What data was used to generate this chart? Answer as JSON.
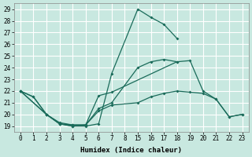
{
  "xlabel": "Humidex (Indice chaleur)",
  "bg_color": "#c8e8e0",
  "grid_color": "#ffffff",
  "line_color": "#1a6b5a",
  "ylim": [
    18.5,
    29.5
  ],
  "yticks": [
    19,
    20,
    21,
    22,
    23,
    24,
    25,
    26,
    27,
    28,
    29
  ],
  "xtick_labels": [
    "0",
    "1",
    "2",
    "3",
    "4",
    "5",
    "6",
    "7",
    "8",
    "15",
    "16",
    "17",
    "18",
    "19",
    "20",
    "21",
    "22",
    "23"
  ],
  "series1_x": [
    0,
    1,
    2,
    3,
    4,
    5,
    6,
    7,
    9,
    10,
    11,
    12
  ],
  "series1_y": [
    22,
    21.5,
    20,
    19.2,
    19,
    19,
    19.2,
    23.5,
    29,
    28.3,
    27.7,
    26.5
  ],
  "series2_x": [
    0,
    1,
    2,
    3,
    4,
    5,
    6,
    7,
    12
  ],
  "series2_y": [
    22,
    21.5,
    20,
    19.2,
    19,
    19.1,
    21.6,
    21.9,
    24.5
  ],
  "series3_x": [
    0,
    2,
    3,
    4,
    5,
    6,
    7,
    9,
    10,
    11,
    12,
    13,
    14,
    15,
    16,
    17
  ],
  "series3_y": [
    22,
    20,
    19.2,
    19.1,
    19.1,
    20.5,
    21.0,
    24.0,
    24.5,
    24.7,
    24.5,
    24.6,
    22.0,
    21.3,
    19.8,
    20.0
  ],
  "series4_x": [
    0,
    2,
    3,
    4,
    5,
    6,
    7,
    9,
    10,
    11,
    12,
    13,
    14,
    15,
    16,
    17
  ],
  "series4_y": [
    22,
    20,
    19.3,
    19.1,
    19.1,
    20.3,
    20.8,
    21.0,
    21.5,
    21.8,
    22.0,
    21.9,
    21.8,
    21.3,
    19.8,
    20.0
  ]
}
